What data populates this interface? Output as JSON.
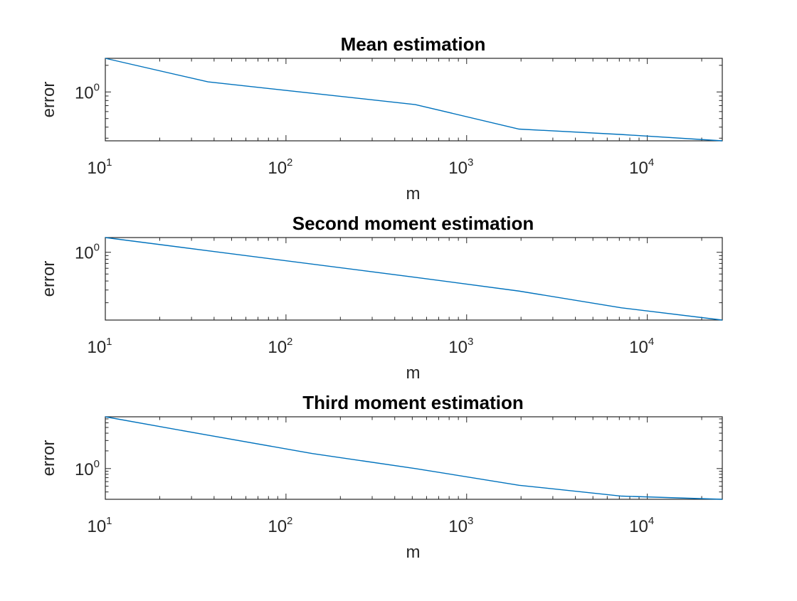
{
  "chart_data": [
    {
      "type": "line",
      "title": "Mean estimation",
      "xlabel": "m",
      "ylabel": "error",
      "xscale": "log",
      "yscale": "log",
      "xlim": [
        10,
        26000
      ],
      "ylim": [
        0.28,
        2.4
      ],
      "xticks": [
        {
          "base": "10",
          "exp": "1"
        },
        {
          "base": "10",
          "exp": "2"
        },
        {
          "base": "10",
          "exp": "3"
        },
        {
          "base": "10",
          "exp": "4"
        }
      ],
      "yticks": [
        {
          "base": "10",
          "exp": "0"
        }
      ],
      "grid": false,
      "series": [
        {
          "color": "#0072BD",
          "x": [
            10,
            37,
            520,
            1950,
            7200,
            26000
          ],
          "y": [
            2.4,
            1.3,
            0.72,
            0.38,
            0.33,
            0.28
          ]
        }
      ]
    },
    {
      "type": "line",
      "title": "Second moment estimation",
      "xlabel": "m",
      "ylabel": "error",
      "xscale": "log",
      "yscale": "log",
      "xlim": [
        10,
        26000
      ],
      "ylim": [
        0.115,
        1.6
      ],
      "xticks": [
        {
          "base": "10",
          "exp": "1"
        },
        {
          "base": "10",
          "exp": "2"
        },
        {
          "base": "10",
          "exp": "3"
        },
        {
          "base": "10",
          "exp": "4"
        }
      ],
      "yticks": [
        {
          "base": "10",
          "exp": "0"
        }
      ],
      "grid": false,
      "series": [
        {
          "color": "#0072BD",
          "x": [
            10,
            37,
            520,
            1950,
            7200,
            26000
          ],
          "y": [
            1.6,
            1.05,
            0.45,
            0.29,
            0.17,
            0.115
          ]
        }
      ]
    },
    {
      "type": "line",
      "title": "Third moment estimation",
      "xlabel": "m",
      "ylabel": "error",
      "xscale": "log",
      "yscale": "log",
      "xlim": [
        10,
        26000
      ],
      "ylim": [
        0.3,
        7.6
      ],
      "xticks": [
        {
          "base": "10",
          "exp": "1"
        },
        {
          "base": "10",
          "exp": "2"
        },
        {
          "base": "10",
          "exp": "3"
        },
        {
          "base": "10",
          "exp": "4"
        }
      ],
      "yticks": [
        {
          "base": "10",
          "exp": "0"
        }
      ],
      "grid": false,
      "series": [
        {
          "color": "#0072BD",
          "x": [
            10,
            37,
            140,
            520,
            1950,
            7200,
            26000
          ],
          "y": [
            7.6,
            3.7,
            1.8,
            1.0,
            0.52,
            0.34,
            0.3
          ]
        }
      ]
    }
  ]
}
